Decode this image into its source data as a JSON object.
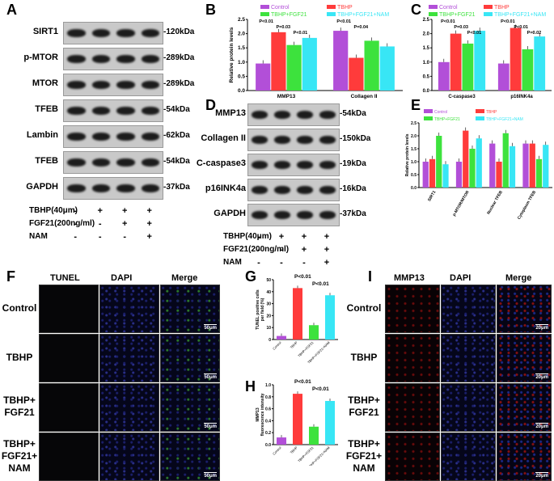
{
  "panels": {
    "A": "A",
    "B": "B",
    "C": "C",
    "D": "D",
    "E": "E",
    "F": "F",
    "G": "G",
    "H": "H",
    "I": "I"
  },
  "blotA": {
    "rows": [
      {
        "label": "SIRT1",
        "kda": "-120kDa"
      },
      {
        "label": "p-MTOR",
        "kda": "-289kDa"
      },
      {
        "label": "MTOR",
        "kda": "-289kDa"
      },
      {
        "label": "TFEB",
        "kda": "-54kDa"
      },
      {
        "label": "Lambin",
        "kda": "-62kDa"
      },
      {
        "label": "TFEB",
        "kda": "-54kDa"
      },
      {
        "label": "GAPDH",
        "kda": "-37kDa"
      }
    ],
    "treatments": [
      {
        "label": "TBHP(40μm)",
        "signs": [
          "-",
          "+",
          "+",
          "+"
        ]
      },
      {
        "label": "FGF21(200ng/ml)",
        "signs": [
          "-",
          "-",
          "+",
          "+"
        ]
      },
      {
        "label": "NAM",
        "signs": [
          "-",
          "-",
          "-",
          "+"
        ]
      }
    ]
  },
  "blotD": {
    "rows": [
      {
        "label": "MMP13",
        "kda": "-54kDa"
      },
      {
        "label": "Collagen II",
        "kda": "-150kDa"
      },
      {
        "label": "C-caspase3",
        "kda": "-19kDa"
      },
      {
        "label": "p16INK4a",
        "kda": "-16kDa"
      },
      {
        "label": "GAPDH",
        "kda": "-37kDa"
      }
    ],
    "treatments": [
      {
        "label": "TBHP(40μm)",
        "signs": [
          "-",
          "+",
          "+",
          "+"
        ]
      },
      {
        "label": "FGF21(200ng/ml)",
        "signs": [
          "-",
          "-",
          "+",
          "+"
        ]
      },
      {
        "label": "NAM",
        "signs": [
          "-",
          "-",
          "-",
          "+"
        ]
      }
    ]
  },
  "panelF": {
    "cols": [
      "TUNEL",
      "DAPI",
      "Merge"
    ],
    "rows": [
      "Control",
      "TBHP",
      "TBHP+\nFGF21",
      "TBHP+\nFGF21+\nNAM"
    ],
    "scale": "50μm"
  },
  "panelI": {
    "cols": [
      "MMP13",
      "DAPI",
      "Merge"
    ],
    "rows": [
      "Control",
      "TBHP",
      "TBHP+\nFGF21",
      "TBHP+\nFGF21+\nNAM"
    ],
    "scale": "20μm"
  },
  "colors": {
    "control": "#b24fd8",
    "tbhp": "#ff3b3b",
    "fgf21": "#3de23d",
    "nam": "#38e6f5"
  },
  "chart_data": [
    {
      "id": "B",
      "type": "bar",
      "legend": [
        "Control",
        "TBHP",
        "TBHP+FGF21",
        "TBHP+FGF21+NAM"
      ],
      "categories": [
        "MMP13",
        "Collagen II"
      ],
      "series": [
        {
          "name": "Control",
          "values": [
            0.95,
            2.1
          ]
        },
        {
          "name": "TBHP",
          "values": [
            2.05,
            1.15
          ]
        },
        {
          "name": "TBHP+FGF21",
          "values": [
            1.6,
            1.75
          ]
        },
        {
          "name": "TBHP+FGF21+NAM",
          "values": [
            1.85,
            1.55
          ]
        }
      ],
      "ylabel": "Relative protein levels",
      "ylim": [
        0,
        2.5
      ],
      "yticks": [
        "0.0",
        "0.5",
        "1.0",
        "1.5",
        "2.0",
        "2.5"
      ],
      "annotations": [
        "P<0.01",
        "P=0.03",
        "P<0.01",
        "P<0.01",
        "P=0.04"
      ]
    },
    {
      "id": "C",
      "type": "bar",
      "legend": [
        "Control",
        "TBHP",
        "TBHP+FGF21",
        "TBHP+FGF21+NAM"
      ],
      "categories": [
        "C-caspase3",
        "p16INK4a"
      ],
      "series": [
        {
          "name": "Control",
          "values": [
            1.0,
            0.95
          ]
        },
        {
          "name": "TBHP",
          "values": [
            2.0,
            2.2
          ]
        },
        {
          "name": "TBHP+FGF21",
          "values": [
            1.65,
            1.45
          ]
        },
        {
          "name": "TBHP+FGF21+NAM",
          "values": [
            2.1,
            1.9
          ]
        }
      ],
      "ylim": [
        0,
        2.5
      ],
      "yticks": [
        "0.0",
        "0.5",
        "1.0",
        "1.5",
        "2.0",
        "2.5"
      ],
      "annotations": [
        "P<0.01",
        "P=0.03",
        "P<0.01",
        "P<0.01",
        "P<0.01",
        "P=0.02"
      ]
    },
    {
      "id": "E",
      "type": "bar",
      "legend": [
        "Control",
        "TBHP",
        "TBHP+FGF21",
        "TBHP+FGF21+NAM"
      ],
      "categories": [
        "SIRT1",
        "p-MTOR/MTOR",
        "Nuclear TFEB",
        "Cytoplasm TFEB"
      ],
      "series": [
        {
          "name": "Control",
          "values": [
            1.0,
            1.0,
            1.7,
            1.7
          ]
        },
        {
          "name": "TBHP",
          "values": [
            1.1,
            2.2,
            1.0,
            1.7
          ]
        },
        {
          "name": "TBHP+FGF21",
          "values": [
            2.0,
            1.5,
            2.1,
            1.1
          ]
        },
        {
          "name": "TBHP+FGF21+NAM",
          "values": [
            0.9,
            1.9,
            1.6,
            1.65
          ]
        }
      ],
      "ylabel": "Relative protein levels",
      "ylim": [
        0,
        2.5
      ],
      "yticks": [
        "0.0",
        "0.5",
        "1.0",
        "1.5",
        "2.0",
        "2.5"
      ]
    },
    {
      "id": "G",
      "type": "bar",
      "categories": [
        "Control",
        "TBHP",
        "TBHP+FGF21",
        "TBHP+FGF21+NAM"
      ],
      "values": [
        3,
        43,
        12,
        37
      ],
      "ylabel": "TUNEL positive cells\nper field (%)",
      "ylim": [
        0,
        50
      ],
      "yticks": [
        "0",
        "10",
        "20",
        "30",
        "40",
        "50"
      ],
      "annotations": [
        "P<0.01",
        "P<0.01"
      ]
    },
    {
      "id": "H",
      "type": "bar",
      "categories": [
        "Control",
        "TBHP",
        "TBHP+FGF21",
        "TBHP+FGF21+NAM"
      ],
      "values": [
        0.12,
        0.85,
        0.3,
        0.73
      ],
      "ylabel": "MMP13\nfluorescence intensity",
      "ylim": [
        0,
        1.0
      ],
      "yticks": [
        "0.0",
        "0.2",
        "0.4",
        "0.6",
        "0.8",
        "1.0"
      ],
      "annotations": [
        "P<0.01",
        "P<0.01"
      ]
    }
  ]
}
